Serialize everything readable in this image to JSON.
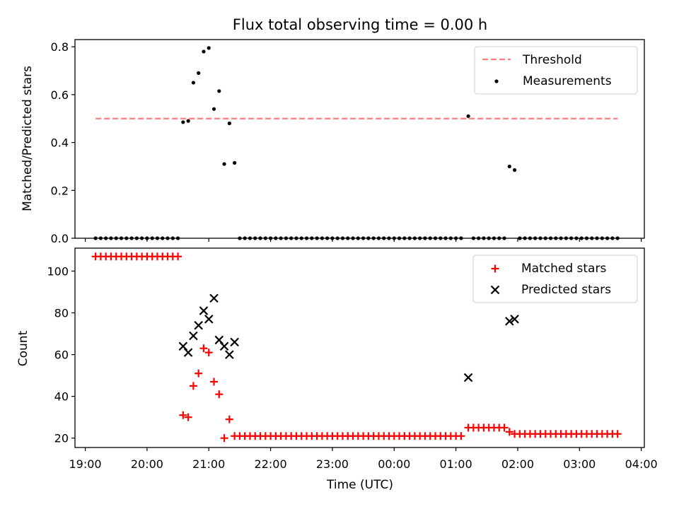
{
  "title": "Flux total observing time = 0.00 h",
  "colors": {
    "threshold": "#ff7f7f",
    "measurement": "#000000",
    "matched": "#ff0000",
    "predicted": "#000000"
  },
  "chart_data": [
    {
      "type": "scatter",
      "ylabel": "Matched/Predicted stars",
      "ylim": [
        0,
        0.83
      ],
      "yticks": [
        "0.0",
        "0.2",
        "0.4",
        "0.6",
        "0.8"
      ],
      "legend": {
        "placement": "top-right",
        "entries": [
          "Threshold",
          "Measurements"
        ]
      },
      "threshold": {
        "name": "Threshold",
        "value": 0.5,
        "x_start": "19:10",
        "x_end": "03:37"
      },
      "series": [
        {
          "name": "Measurements",
          "marker": "dot",
          "points": [
            [
              "19:10",
              0
            ],
            [
              "19:15",
              0
            ],
            [
              "19:20",
              0
            ],
            [
              "19:25",
              0
            ],
            [
              "19:30",
              0
            ],
            [
              "19:35",
              0
            ],
            [
              "19:40",
              0
            ],
            [
              "19:45",
              0
            ],
            [
              "19:50",
              0
            ],
            [
              "19:55",
              0
            ],
            [
              "20:00",
              0
            ],
            [
              "20:05",
              0
            ],
            [
              "20:10",
              0
            ],
            [
              "20:15",
              0
            ],
            [
              "20:20",
              0
            ],
            [
              "20:25",
              0
            ],
            [
              "20:30",
              0
            ],
            [
              "20:35",
              0.485
            ],
            [
              "20:40",
              0.49
            ],
            [
              "20:45",
              0.65
            ],
            [
              "20:50",
              0.69
            ],
            [
              "20:55",
              0.78
            ],
            [
              "21:00",
              0.795
            ],
            [
              "21:05",
              0.54
            ],
            [
              "21:10",
              0.615
            ],
            [
              "21:15",
              0.31
            ],
            [
              "21:20",
              0.48
            ],
            [
              "21:25",
              0.315
            ],
            [
              "21:30",
              0
            ],
            [
              "21:35",
              0
            ],
            [
              "21:40",
              0
            ],
            [
              "21:45",
              0
            ],
            [
              "21:50",
              0
            ],
            [
              "21:55",
              0
            ],
            [
              "22:00",
              0
            ],
            [
              "22:05",
              0
            ],
            [
              "22:10",
              0
            ],
            [
              "22:15",
              0
            ],
            [
              "22:20",
              0
            ],
            [
              "22:25",
              0
            ],
            [
              "22:30",
              0
            ],
            [
              "22:35",
              0
            ],
            [
              "22:40",
              0
            ],
            [
              "22:45",
              0
            ],
            [
              "22:50",
              0
            ],
            [
              "22:55",
              0
            ],
            [
              "23:00",
              0
            ],
            [
              "23:05",
              0
            ],
            [
              "23:10",
              0
            ],
            [
              "23:15",
              0
            ],
            [
              "23:20",
              0
            ],
            [
              "23:25",
              0
            ],
            [
              "23:30",
              0
            ],
            [
              "23:35",
              0
            ],
            [
              "23:40",
              0
            ],
            [
              "23:45",
              0
            ],
            [
              "23:50",
              0
            ],
            [
              "23:55",
              0
            ],
            [
              "00:00",
              0
            ],
            [
              "00:05",
              0
            ],
            [
              "00:10",
              0
            ],
            [
              "00:15",
              0
            ],
            [
              "00:20",
              0
            ],
            [
              "00:25",
              0
            ],
            [
              "00:30",
              0
            ],
            [
              "00:35",
              0
            ],
            [
              "00:40",
              0
            ],
            [
              "00:45",
              0
            ],
            [
              "00:50",
              0
            ],
            [
              "00:55",
              0
            ],
            [
              "01:00",
              0
            ],
            [
              "01:05",
              0
            ],
            [
              "01:12",
              0.51
            ],
            [
              "01:17",
              0
            ],
            [
              "01:22",
              0
            ],
            [
              "01:27",
              0
            ],
            [
              "01:32",
              0
            ],
            [
              "01:37",
              0
            ],
            [
              "01:42",
              0
            ],
            [
              "01:47",
              0
            ],
            [
              "01:52",
              0.3
            ],
            [
              "01:57",
              0.285
            ],
            [
              "02:02",
              0
            ],
            [
              "02:07",
              0
            ],
            [
              "02:12",
              0
            ],
            [
              "02:17",
              0
            ],
            [
              "02:22",
              0
            ],
            [
              "02:27",
              0
            ],
            [
              "02:32",
              0
            ],
            [
              "02:37",
              0
            ],
            [
              "02:42",
              0
            ],
            [
              "02:47",
              0
            ],
            [
              "02:52",
              0
            ],
            [
              "02:57",
              0
            ],
            [
              "03:02",
              0
            ],
            [
              "03:07",
              0
            ],
            [
              "03:12",
              0
            ],
            [
              "03:17",
              0
            ],
            [
              "03:22",
              0
            ],
            [
              "03:27",
              0
            ],
            [
              "03:32",
              0
            ],
            [
              "03:37",
              0
            ]
          ]
        }
      ]
    },
    {
      "type": "scatter",
      "ylabel": "Count",
      "xlabel": "Time (UTC)",
      "ylim": [
        15.5,
        111
      ],
      "yticks": [
        "20",
        "40",
        "60",
        "80",
        "100"
      ],
      "xticks": [
        "19:00",
        "20:00",
        "21:00",
        "22:00",
        "23:00",
        "00:00",
        "01:00",
        "02:00",
        "03:00",
        "04:00"
      ],
      "xlim": [
        "18:50",
        "04:03"
      ],
      "legend": {
        "placement": "top-right",
        "entries": [
          "Matched stars",
          "Predicted stars"
        ]
      },
      "series": [
        {
          "name": "Matched stars",
          "marker": "plus",
          "points": [
            [
              "19:10",
              107
            ],
            [
              "19:15",
              107
            ],
            [
              "19:20",
              107
            ],
            [
              "19:25",
              107
            ],
            [
              "19:30",
              107
            ],
            [
              "19:35",
              107
            ],
            [
              "19:40",
              107
            ],
            [
              "19:45",
              107
            ],
            [
              "19:50",
              107
            ],
            [
              "19:55",
              107
            ],
            [
              "20:00",
              107
            ],
            [
              "20:05",
              107
            ],
            [
              "20:10",
              107
            ],
            [
              "20:15",
              107
            ],
            [
              "20:20",
              107
            ],
            [
              "20:25",
              107
            ],
            [
              "20:30",
              107
            ],
            [
              "20:35",
              31
            ],
            [
              "20:40",
              30
            ],
            [
              "20:45",
              45
            ],
            [
              "20:50",
              51
            ],
            [
              "20:55",
              63
            ],
            [
              "21:00",
              61
            ],
            [
              "21:05",
              47
            ],
            [
              "21:10",
              41
            ],
            [
              "21:15",
              20
            ],
            [
              "21:20",
              29
            ],
            [
              "21:25",
              21
            ],
            [
              "21:30",
              21
            ],
            [
              "21:35",
              21
            ],
            [
              "21:40",
              21
            ],
            [
              "21:45",
              21
            ],
            [
              "21:50",
              21
            ],
            [
              "21:55",
              21
            ],
            [
              "22:00",
              21
            ],
            [
              "22:05",
              21
            ],
            [
              "22:10",
              21
            ],
            [
              "22:15",
              21
            ],
            [
              "22:20",
              21
            ],
            [
              "22:25",
              21
            ],
            [
              "22:30",
              21
            ],
            [
              "22:35",
              21
            ],
            [
              "22:40",
              21
            ],
            [
              "22:45",
              21
            ],
            [
              "22:50",
              21
            ],
            [
              "22:55",
              21
            ],
            [
              "23:00",
              21
            ],
            [
              "23:05",
              21
            ],
            [
              "23:10",
              21
            ],
            [
              "23:15",
              21
            ],
            [
              "23:20",
              21
            ],
            [
              "23:25",
              21
            ],
            [
              "23:30",
              21
            ],
            [
              "23:35",
              21
            ],
            [
              "23:40",
              21
            ],
            [
              "23:45",
              21
            ],
            [
              "23:50",
              21
            ],
            [
              "23:55",
              21
            ],
            [
              "00:00",
              21
            ],
            [
              "00:05",
              21
            ],
            [
              "00:10",
              21
            ],
            [
              "00:15",
              21
            ],
            [
              "00:20",
              21
            ],
            [
              "00:25",
              21
            ],
            [
              "00:30",
              21
            ],
            [
              "00:35",
              21
            ],
            [
              "00:40",
              21
            ],
            [
              "00:45",
              21
            ],
            [
              "00:50",
              21
            ],
            [
              "00:55",
              21
            ],
            [
              "01:00",
              21
            ],
            [
              "01:05",
              21
            ],
            [
              "01:12",
              25
            ],
            [
              "01:17",
              25
            ],
            [
              "01:22",
              25
            ],
            [
              "01:27",
              25
            ],
            [
              "01:32",
              25
            ],
            [
              "01:37",
              25
            ],
            [
              "01:42",
              25
            ],
            [
              "01:47",
              25
            ],
            [
              "01:52",
              23
            ],
            [
              "01:57",
              22
            ],
            [
              "02:02",
              22
            ],
            [
              "02:07",
              22
            ],
            [
              "02:12",
              22
            ],
            [
              "02:17",
              22
            ],
            [
              "02:22",
              22
            ],
            [
              "02:27",
              22
            ],
            [
              "02:32",
              22
            ],
            [
              "02:37",
              22
            ],
            [
              "02:42",
              22
            ],
            [
              "02:47",
              22
            ],
            [
              "02:52",
              22
            ],
            [
              "02:57",
              22
            ],
            [
              "03:02",
              22
            ],
            [
              "03:07",
              22
            ],
            [
              "03:12",
              22
            ],
            [
              "03:17",
              22
            ],
            [
              "03:22",
              22
            ],
            [
              "03:27",
              22
            ],
            [
              "03:32",
              22
            ],
            [
              "03:37",
              22
            ]
          ]
        },
        {
          "name": "Predicted stars",
          "marker": "x",
          "points": [
            [
              "20:35",
              64
            ],
            [
              "20:40",
              61
            ],
            [
              "20:45",
              69
            ],
            [
              "20:50",
              74
            ],
            [
              "20:55",
              81
            ],
            [
              "21:00",
              77
            ],
            [
              "21:05",
              87
            ],
            [
              "21:10",
              67
            ],
            [
              "21:15",
              64
            ],
            [
              "21:20",
              60
            ],
            [
              "21:25",
              66
            ],
            [
              "01:12",
              49
            ],
            [
              "01:52",
              76
            ],
            [
              "01:57",
              77
            ]
          ]
        }
      ]
    }
  ]
}
